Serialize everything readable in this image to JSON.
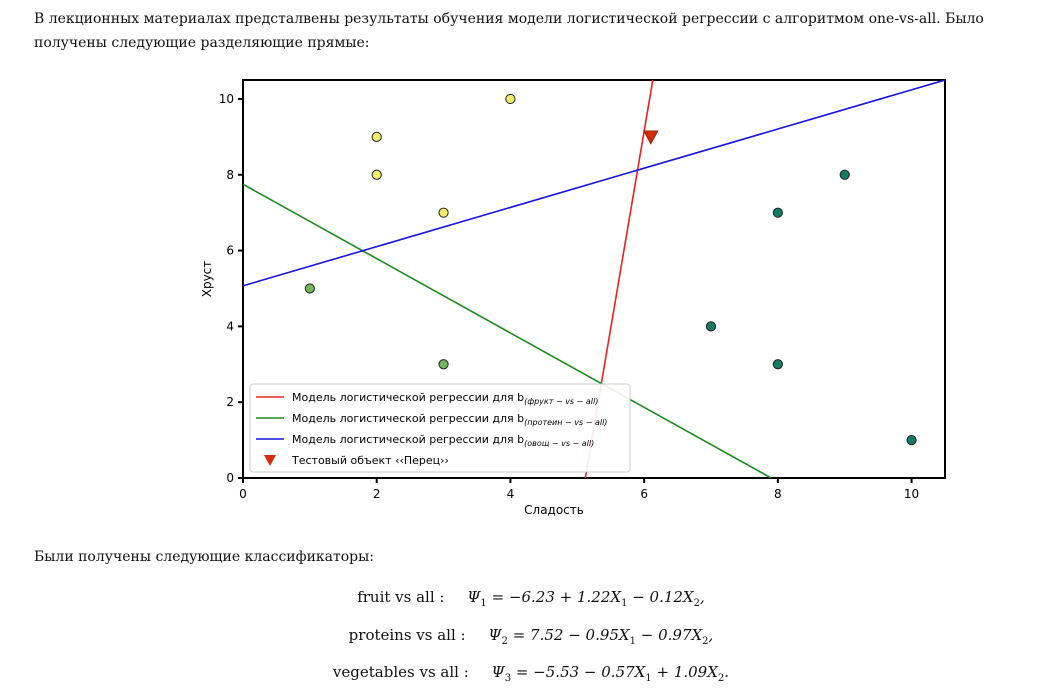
{
  "intro_text": "В лекционных материалах предсталвены результаты обучения модели логистической регрессии с алгоритмом one-vs-all. Было получены следующие разделяющие прямые:",
  "chart_data": {
    "type": "scatter",
    "xlabel": "Сладость",
    "ylabel": "Хруст",
    "xlim": [
      0,
      10.5
    ],
    "ylim": [
      0,
      10.5
    ],
    "xticks": [
      0,
      2,
      4,
      6,
      8,
      10
    ],
    "yticks": [
      0,
      2,
      4,
      6,
      8,
      10
    ],
    "grid": false,
    "legend_position": "bottom-left",
    "point_groups": [
      {
        "color": "#f2ef6b",
        "points": [
          [
            2,
            9
          ],
          [
            2,
            8
          ],
          [
            3,
            7
          ],
          [
            4,
            10
          ]
        ]
      },
      {
        "color": "#74b35a",
        "points": [
          [
            1,
            5
          ],
          [
            3,
            3
          ]
        ]
      },
      {
        "color": "#137a63",
        "points": [
          [
            7,
            4
          ],
          [
            8,
            7
          ],
          [
            8,
            3
          ],
          [
            9,
            8
          ],
          [
            10,
            1
          ]
        ]
      }
    ],
    "test_point": {
      "x": 6.1,
      "y": 9,
      "color": "#d42a0c"
    },
    "lines": [
      {
        "color": "#e8221e",
        "points": [
          [
            5.12,
            0
          ],
          [
            6.13,
            10.5
          ]
        ]
      },
      {
        "color": "#1a8b1a",
        "points": [
          [
            0,
            7.75
          ],
          [
            7.9,
            0
          ]
        ]
      },
      {
        "color": "#1515e0",
        "points": [
          [
            0,
            5.07
          ],
          [
            10.5,
            10.5
          ]
        ]
      }
    ],
    "legend": [
      {
        "text": "Модель логистической регрессии для b",
        "sub": "(фрукт − vs − all)",
        "color": "#e8221e",
        "marker": "line"
      },
      {
        "text": "Модель логистической регрессии для b",
        "sub": "(протеин − vs − all)",
        "color": "#1a8b1a",
        "marker": "line"
      },
      {
        "text": "Модель логистической регрессии для b",
        "sub": "(овощ − vs − all)",
        "color": "#1515e0",
        "marker": "line"
      },
      {
        "text": "Тестовый объект ‹‹Перец››",
        "sub": "",
        "color": "#d42a0c",
        "marker": "triangle"
      }
    ]
  },
  "classifiers_title": "Были получены следующие классификаторы:",
  "formulas": [
    {
      "name": "fruit vs all :",
      "psi": "Ψ",
      "idx": "1",
      "rest": " = −6.23 + 1.22X",
      "i1": "1",
      "mid": " − 0.12X",
      "i2": "2",
      "end": ","
    },
    {
      "name": "proteins vs all :",
      "psi": "Ψ",
      "idx": "2",
      "rest": " = 7.52 − 0.95X",
      "i1": "1",
      "mid": " − 0.97X",
      "i2": "2",
      "end": ","
    },
    {
      "name": "vegetables vs all :",
      "psi": "Ψ",
      "idx": "3",
      "rest": " = −5.53 − 0.57X",
      "i1": "1",
      "mid": " + 1.09X",
      "i2": "2",
      "end": "."
    }
  ]
}
